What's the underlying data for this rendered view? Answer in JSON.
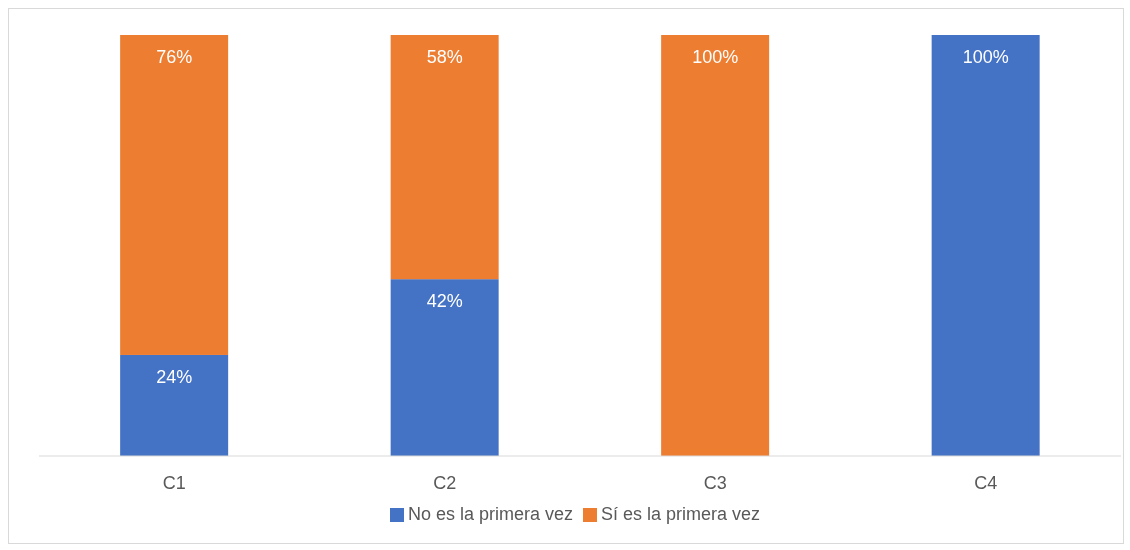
{
  "chart_data": {
    "type": "bar",
    "stacked": true,
    "categories": [
      "C1",
      "C2",
      "C3",
      "C4"
    ],
    "series": [
      {
        "name": "No es la primera vez",
        "color": "#4472c4",
        "values": [
          24,
          42,
          0,
          100
        ],
        "value_labels": [
          "24%",
          "42%",
          null,
          "100%"
        ]
      },
      {
        "name": "Sí es la primera vez",
        "color": "#ed7d31",
        "values": [
          76,
          58,
          100,
          0
        ],
        "value_labels": [
          "76%",
          "58%",
          "100%",
          null
        ]
      }
    ],
    "legend": "bottom",
    "grid": false
  }
}
